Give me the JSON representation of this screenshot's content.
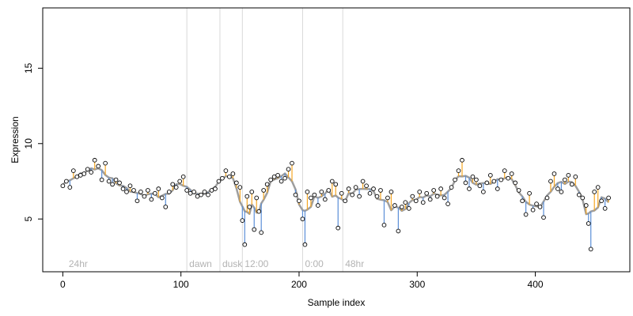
{
  "chart_data": {
    "type": "scatter",
    "title": "",
    "xlabel": "Sample index",
    "ylabel": "Expression",
    "xlim": [
      -17,
      480
    ],
    "ylim": [
      1.5,
      19
    ],
    "x_ticks": [
      0,
      100,
      200,
      300,
      400
    ],
    "y_ticks": [
      5,
      10,
      15
    ],
    "grid": false,
    "legend": "none",
    "colors": {
      "points_stroke": "#000000",
      "points_fill": "#ffffff",
      "fit_line": "#9e9e9e",
      "residual_above": "#f5a623",
      "residual_below": "#5b8fd8",
      "marker_lines": "#d9d9d9",
      "annotation_text": "#b3b3b3"
    },
    "vertical_markers": [
      {
        "x": 3,
        "label": "24hr",
        "line": false
      },
      {
        "x": 105,
        "label": "dawn",
        "line": true
      },
      {
        "x": 133,
        "label": "dusk",
        "line": true
      },
      {
        "x": 152,
        "label": "12:00",
        "line": true
      },
      {
        "x": 203,
        "label": "0:00",
        "line": true
      },
      {
        "x": 237,
        "label": "48hr",
        "line": true
      }
    ],
    "series": [
      {
        "points": [
          [
            0,
            7.2
          ],
          [
            3,
            7.5
          ],
          [
            6,
            7.1
          ],
          [
            9,
            8.2
          ],
          [
            12,
            7.8
          ],
          [
            15,
            7.9
          ],
          [
            18,
            8.0
          ],
          [
            21,
            8.3
          ],
          [
            24,
            8.1
          ],
          [
            27,
            8.9
          ],
          [
            30,
            8.5
          ],
          [
            33,
            7.6
          ],
          [
            36,
            8.7
          ],
          [
            39,
            7.5
          ],
          [
            42,
            7.3
          ],
          [
            45,
            7.6
          ],
          [
            48,
            7.4
          ],
          [
            51,
            7.0
          ],
          [
            54,
            6.8
          ],
          [
            57,
            7.2
          ],
          [
            60,
            6.9
          ],
          [
            63,
            6.2
          ],
          [
            66,
            6.8
          ],
          [
            69,
            6.5
          ],
          [
            72,
            6.9
          ],
          [
            75,
            6.3
          ],
          [
            78,
            6.7
          ],
          [
            81,
            7.0
          ],
          [
            84,
            6.4
          ],
          [
            87,
            5.8
          ],
          [
            90,
            6.8
          ],
          [
            93,
            7.3
          ],
          [
            96,
            7.1
          ],
          [
            99,
            7.5
          ],
          [
            102,
            7.8
          ],
          [
            105,
            6.9
          ],
          [
            108,
            6.7
          ],
          [
            111,
            6.8
          ],
          [
            114,
            6.5
          ],
          [
            117,
            6.6
          ],
          [
            120,
            6.8
          ],
          [
            123,
            6.6
          ],
          [
            126,
            6.9
          ],
          [
            129,
            7.0
          ],
          [
            132,
            7.5
          ],
          [
            135,
            7.7
          ],
          [
            138,
            8.2
          ],
          [
            141,
            7.8
          ],
          [
            144,
            8.0
          ],
          [
            147,
            7.4
          ],
          [
            150,
            7.1
          ],
          [
            152,
            4.9
          ],
          [
            154,
            3.3
          ],
          [
            156,
            6.5
          ],
          [
            158,
            5.8
          ],
          [
            160,
            6.8
          ],
          [
            162,
            4.3
          ],
          [
            164,
            6.4
          ],
          [
            166,
            5.5
          ],
          [
            168,
            4.1
          ],
          [
            170,
            6.9
          ],
          [
            173,
            7.3
          ],
          [
            176,
            7.6
          ],
          [
            179,
            7.8
          ],
          [
            182,
            7.9
          ],
          [
            185,
            7.5
          ],
          [
            188,
            7.7
          ],
          [
            191,
            8.3
          ],
          [
            194,
            8.7
          ],
          [
            197,
            6.6
          ],
          [
            200,
            6.2
          ],
          [
            203,
            5.0
          ],
          [
            205,
            3.3
          ],
          [
            207,
            6.8
          ],
          [
            210,
            6.4
          ],
          [
            213,
            6.6
          ],
          [
            216,
            5.9
          ],
          [
            219,
            6.8
          ],
          [
            222,
            6.3
          ],
          [
            225,
            6.9
          ],
          [
            228,
            7.5
          ],
          [
            231,
            7.3
          ],
          [
            233,
            4.4
          ],
          [
            236,
            6.7
          ],
          [
            239,
            6.2
          ],
          [
            242,
            7.0
          ],
          [
            245,
            6.6
          ],
          [
            248,
            7.1
          ],
          [
            251,
            6.5
          ],
          [
            254,
            7.5
          ],
          [
            257,
            7.2
          ],
          [
            260,
            6.7
          ],
          [
            263,
            7.0
          ],
          [
            266,
            6.5
          ],
          [
            269,
            6.9
          ],
          [
            272,
            4.6
          ],
          [
            275,
            6.4
          ],
          [
            278,
            6.8
          ],
          [
            281,
            5.9
          ],
          [
            284,
            4.2
          ],
          [
            287,
            5.8
          ],
          [
            290,
            6.1
          ],
          [
            293,
            5.7
          ],
          [
            296,
            6.5
          ],
          [
            299,
            6.2
          ],
          [
            302,
            6.8
          ],
          [
            305,
            6.1
          ],
          [
            308,
            6.7
          ],
          [
            311,
            6.3
          ],
          [
            314,
            6.9
          ],
          [
            317,
            6.5
          ],
          [
            320,
            7.0
          ],
          [
            323,
            6.4
          ],
          [
            326,
            6.0
          ],
          [
            329,
            7.1
          ],
          [
            332,
            7.6
          ],
          [
            335,
            8.2
          ],
          [
            338,
            8.9
          ],
          [
            341,
            7.4
          ],
          [
            344,
            7.0
          ],
          [
            347,
            7.8
          ],
          [
            350,
            7.6
          ],
          [
            353,
            7.2
          ],
          [
            356,
            6.8
          ],
          [
            359,
            7.4
          ],
          [
            362,
            7.9
          ],
          [
            365,
            7.5
          ],
          [
            368,
            7.0
          ],
          [
            371,
            7.6
          ],
          [
            374,
            8.2
          ],
          [
            377,
            7.7
          ],
          [
            380,
            8.0
          ],
          [
            383,
            7.4
          ],
          [
            386,
            6.9
          ],
          [
            389,
            6.2
          ],
          [
            392,
            5.3
          ],
          [
            395,
            6.7
          ],
          [
            398,
            5.6
          ],
          [
            401,
            6.0
          ],
          [
            404,
            5.8
          ],
          [
            407,
            5.1
          ],
          [
            410,
            6.4
          ],
          [
            413,
            7.5
          ],
          [
            416,
            8.0
          ],
          [
            419,
            7.0
          ],
          [
            422,
            6.8
          ],
          [
            425,
            7.6
          ],
          [
            428,
            7.9
          ],
          [
            431,
            7.3
          ],
          [
            434,
            7.8
          ],
          [
            437,
            6.6
          ],
          [
            440,
            6.4
          ],
          [
            443,
            5.9
          ],
          [
            445,
            4.7
          ],
          [
            447,
            3.0
          ],
          [
            450,
            6.8
          ],
          [
            453,
            7.1
          ],
          [
            456,
            6.2
          ],
          [
            459,
            5.7
          ],
          [
            462,
            6.4
          ]
        ]
      }
    ]
  }
}
